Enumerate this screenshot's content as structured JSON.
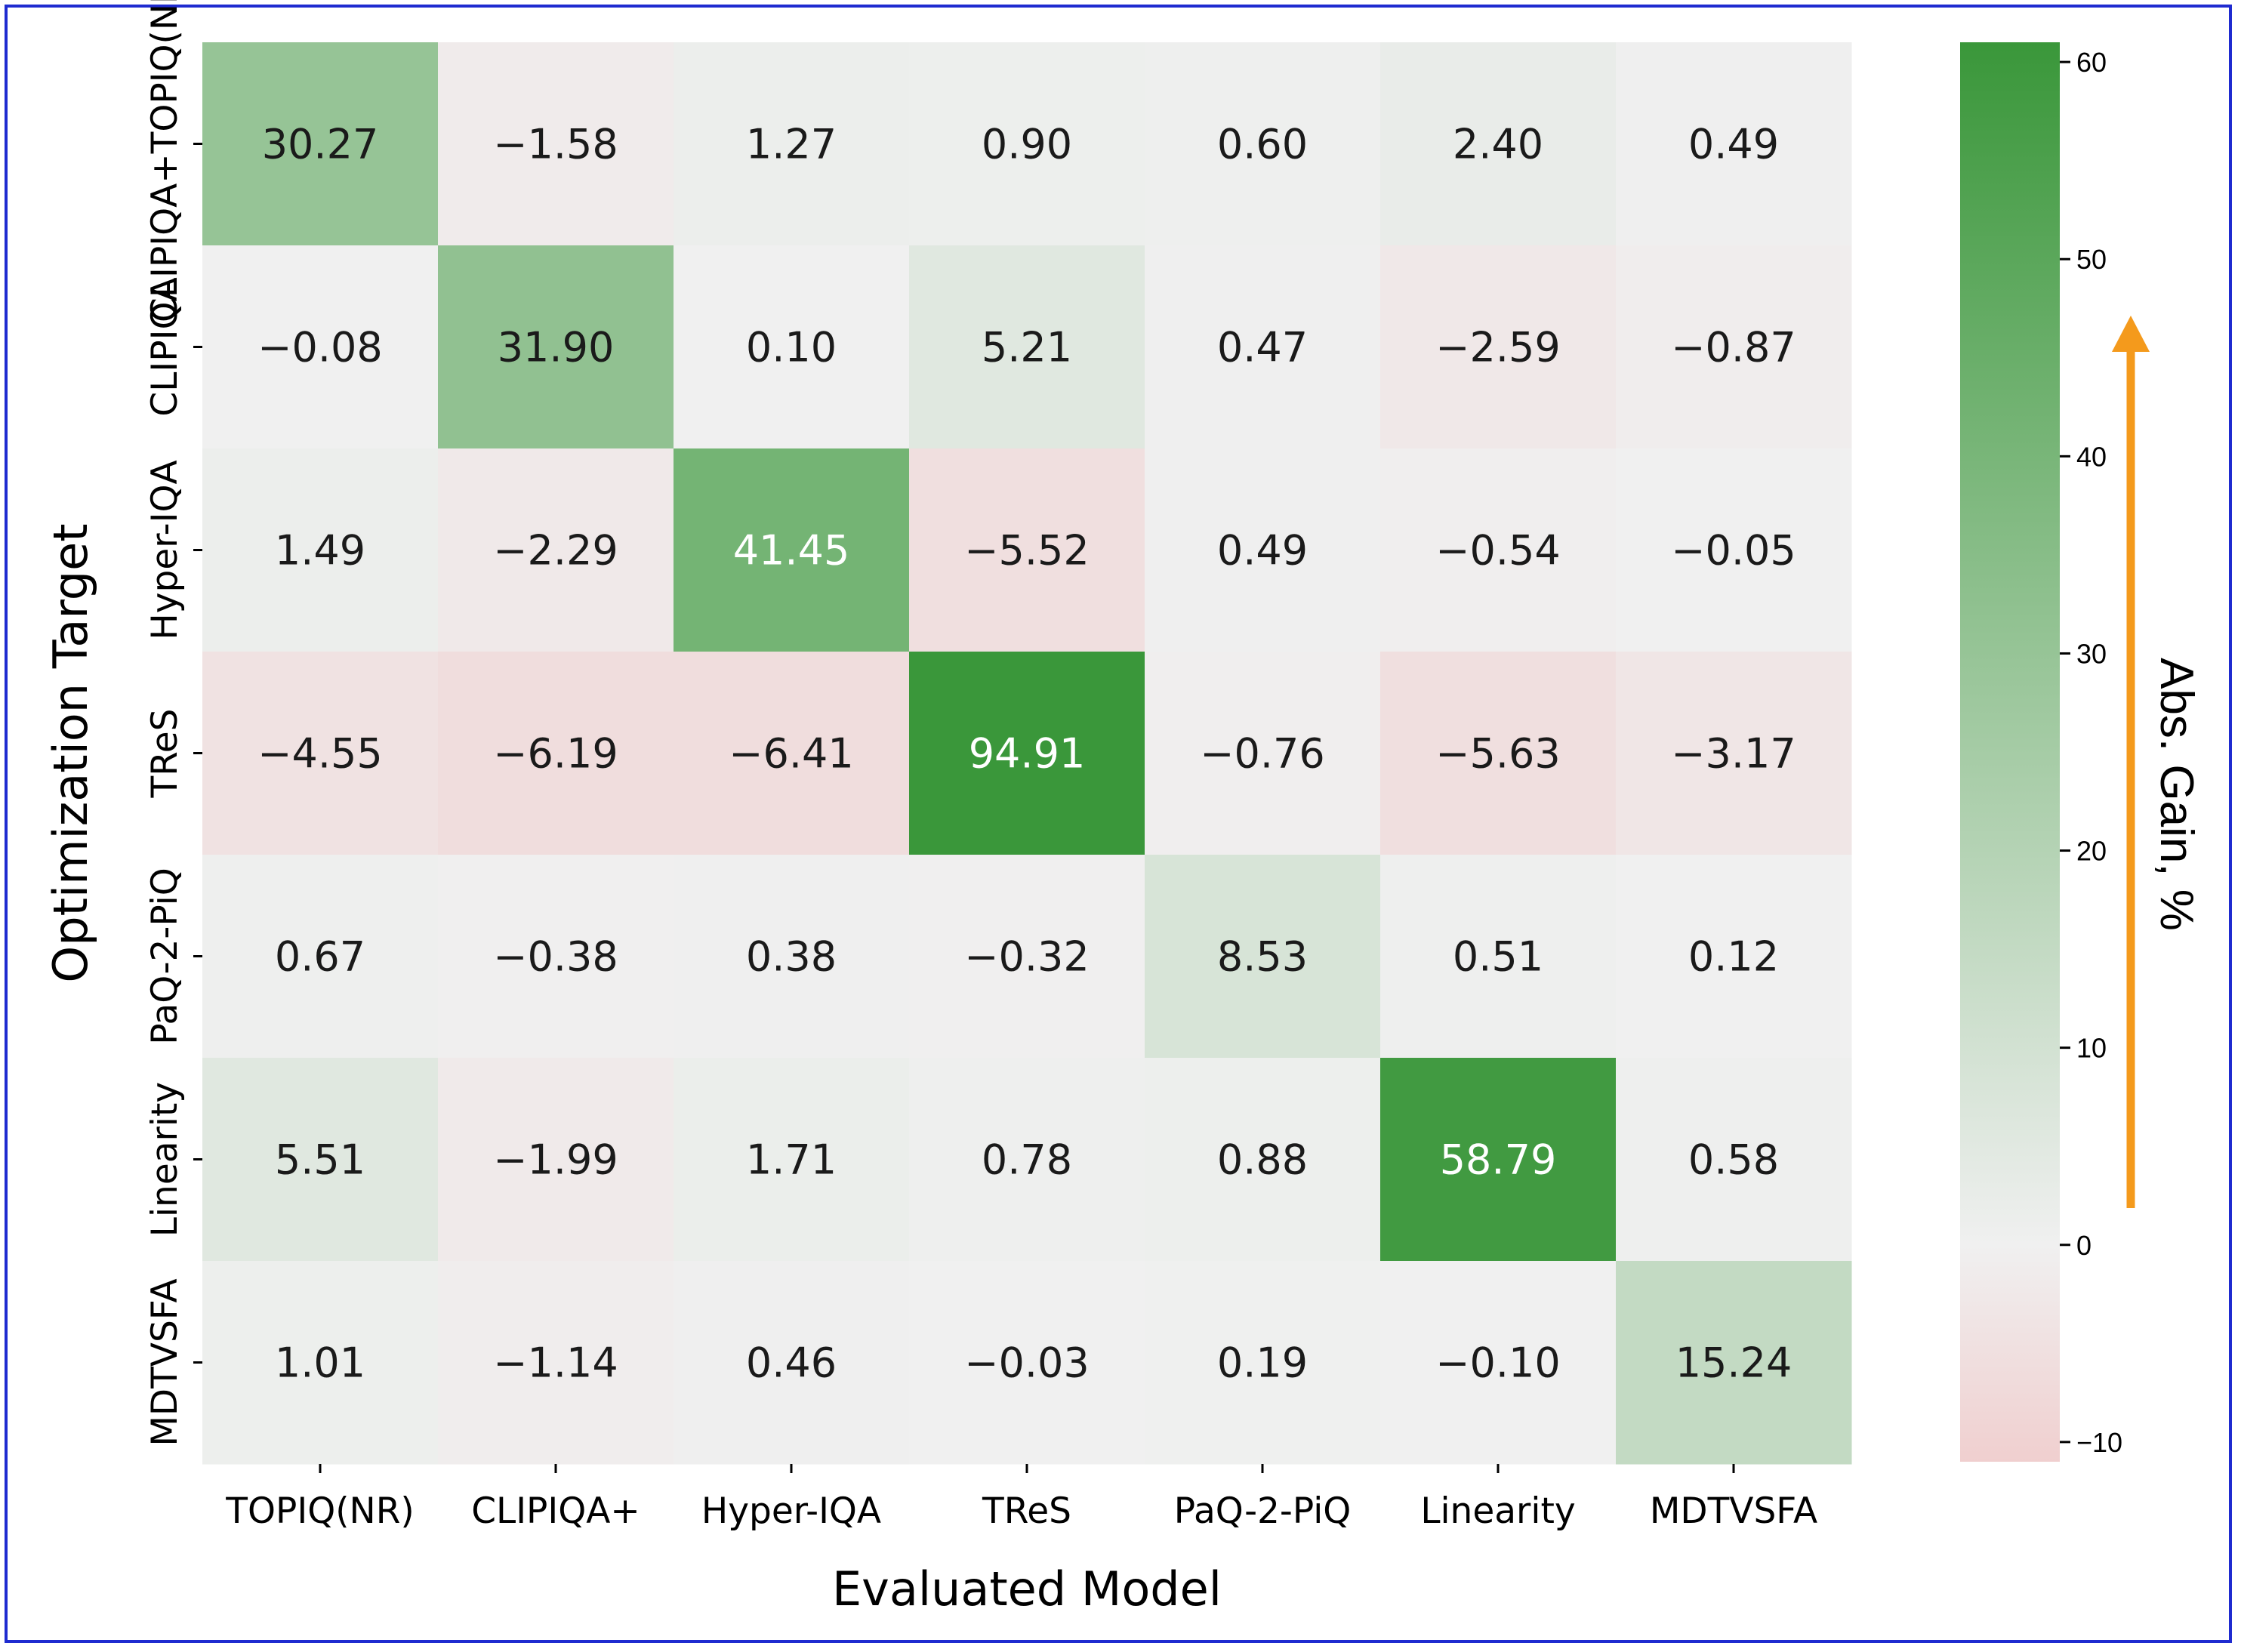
{
  "chart_data": {
    "type": "heatmap",
    "xlabel": "Evaluated Model",
    "ylabel": "Optimization Target",
    "x_categories": [
      "TOPIQ(NR)",
      "CLIPIQA+",
      "Hyper-IQA",
      "TReS",
      "PaQ-2-PiQ",
      "Linearity",
      "MDTVSFA"
    ],
    "y_categories": [
      "CLIPIQA+TOPIQ(NR)",
      "CLIPIQA",
      "Hyper-IQA",
      "TReS",
      "PaQ-2-PiQ",
      "Linearity",
      "MDTVSFA"
    ],
    "values": [
      [
        30.27,
        -1.58,
        1.27,
        0.9,
        0.6,
        2.4,
        0.49
      ],
      [
        -0.08,
        31.9,
        0.1,
        5.21,
        0.47,
        -2.59,
        -0.87
      ],
      [
        1.49,
        -2.29,
        41.45,
        -5.52,
        0.49,
        -0.54,
        -0.05
      ],
      [
        -4.55,
        -6.19,
        -6.41,
        94.91,
        -0.76,
        -5.63,
        -3.17
      ],
      [
        0.67,
        -0.38,
        0.38,
        -0.32,
        8.53,
        0.51,
        0.12
      ],
      [
        5.51,
        -1.99,
        1.71,
        0.78,
        0.88,
        58.79,
        0.58
      ],
      [
        1.01,
        -1.14,
        0.46,
        -0.03,
        0.19,
        -0.1,
        15.24
      ]
    ],
    "value_labels": [
      [
        "30.27",
        "−1.58",
        "1.27",
        "0.90",
        "0.60",
        "2.40",
        "0.49"
      ],
      [
        "−0.08",
        "31.90",
        "0.10",
        "5.21",
        "0.47",
        "−2.59",
        "−0.87"
      ],
      [
        "1.49",
        "−2.29",
        "41.45",
        "−5.52",
        "0.49",
        "−0.54",
        "−0.05"
      ],
      [
        "−4.55",
        "−6.19",
        "−6.41",
        "94.91",
        "−0.76",
        "−5.63",
        "−3.17"
      ],
      [
        "0.67",
        "−0.38",
        "0.38",
        "−0.32",
        "8.53",
        "0.51",
        "0.12"
      ],
      [
        "5.51",
        "−1.99",
        "1.71",
        "0.78",
        "0.88",
        "58.79",
        "0.58"
      ],
      [
        "1.01",
        "−1.14",
        "0.46",
        "−0.03",
        "0.19",
        "−0.10",
        "15.24"
      ]
    ],
    "colorbar": {
      "label": "Abs. Gain, %",
      "range": [
        -11,
        61
      ],
      "ticks": [
        60,
        50,
        40,
        30,
        20,
        10,
        0,
        -10
      ],
      "tick_labels": [
        "60",
        "50",
        "40",
        "30",
        "20",
        "10",
        "0",
        "−10"
      ],
      "colors": {
        "min": "#f0cfcf",
        "mid": "#f0f0f0",
        "max": "#3a973a"
      },
      "arrow_color": "#f49a1c"
    },
    "grid": false
  }
}
